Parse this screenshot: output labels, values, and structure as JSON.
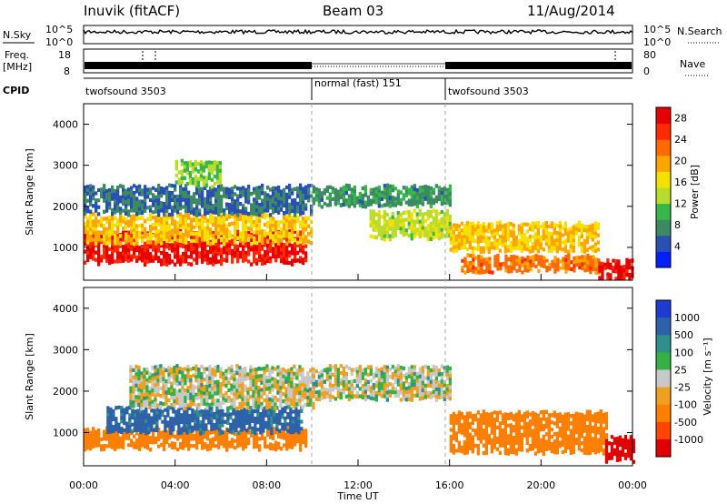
{
  "header": {
    "station": "Inuvik (fitACF)",
    "beam": "Beam 03",
    "date": "11/Aug/2014"
  },
  "nsky_panel": {
    "left_label": "N.Sky",
    "right_label": "N.Search",
    "ticks_left": [
      "10^5",
      "10^0"
    ],
    "ticks_right": [
      "10^5",
      "10^0"
    ]
  },
  "freq_panel": {
    "left_label_1": "Freq.",
    "left_label_2": "[MHz]",
    "right_label": "Nave",
    "ticks_left": [
      "18",
      "8"
    ],
    "ticks_right": [
      "80",
      "0"
    ]
  },
  "cpid": {
    "label": "CPID",
    "segments": [
      {
        "name": "twofsound 3503",
        "start_h": 0,
        "end_h": 10
      },
      {
        "name": "normal (fast) 151",
        "start_h": 10,
        "end_h": 16
      },
      {
        "name": "twofsound 3503",
        "start_h": 16,
        "end_h": 24
      }
    ]
  },
  "colors": {
    "power": [
      "#0020ff",
      "#2a4fb4",
      "#3c8a64",
      "#37b64a",
      "#b8dc2c",
      "#f5e000",
      "#ffa500",
      "#ff6a00",
      "#ff2a00",
      "#e60000"
    ],
    "velocity": [
      "#1b3bd1",
      "#2e62a8",
      "#2f8f8a",
      "#34b044",
      "#8fd43a",
      "#c8c8c8",
      "#f0a020",
      "#ff7f00",
      "#ff4500",
      "#e00000"
    ]
  },
  "chart_data": [
    {
      "type": "heatmap",
      "title": "Power",
      "ylabel": "Slant Range [km]",
      "xlabel": "Time UT",
      "x_ticks": [
        "00:00",
        "04:00",
        "08:00",
        "12:00",
        "16:00",
        "20:00",
        "00:00"
      ],
      "y_ticks": [
        "1000",
        "2000",
        "3000",
        "4000"
      ],
      "xlim_hours": [
        0,
        24
      ],
      "ylim": [
        200,
        4500
      ],
      "colorbar": {
        "label": "Power [dB]",
        "ticks": [
          "4",
          "8",
          "12",
          "16",
          "20",
          "24",
          "28"
        ],
        "range": [
          0,
          30
        ]
      },
      "regions": [
        {
          "t0": 0.0,
          "t1": 9.7,
          "r_min": 600,
          "r_max": 1400,
          "level": 27
        },
        {
          "t0": 0.0,
          "t1": 10.0,
          "r_min": 1100,
          "r_max": 1800,
          "level": 18
        },
        {
          "t0": 0.0,
          "t1": 10.0,
          "r_min": 1800,
          "r_max": 2500,
          "level": 6
        },
        {
          "t0": 4.0,
          "t1": 6.0,
          "r_min": 2500,
          "r_max": 3100,
          "level": 12
        },
        {
          "t0": 10.0,
          "t1": 16.0,
          "r_min": 2000,
          "r_max": 2500,
          "level": 8
        },
        {
          "t0": 12.5,
          "t1": 16.0,
          "r_min": 1200,
          "r_max": 1900,
          "level": 14
        },
        {
          "t0": 16.0,
          "t1": 22.5,
          "r_min": 900,
          "r_max": 1600,
          "level": 18
        },
        {
          "t0": 16.5,
          "t1": 22.5,
          "r_min": 400,
          "r_max": 800,
          "level": 22
        },
        {
          "t0": 22.5,
          "t1": 24.0,
          "r_min": 200,
          "r_max": 700,
          "level": 28
        }
      ]
    },
    {
      "type": "heatmap",
      "title": "Velocity",
      "ylabel": "Slant Range [km]",
      "xlabel": "Time UT",
      "x_ticks": [
        "00:00",
        "04:00",
        "08:00",
        "12:00",
        "16:00",
        "20:00",
        "00:00"
      ],
      "y_ticks": [
        "1000",
        "2000",
        "3000",
        "4000"
      ],
      "xlim_hours": [
        0,
        24
      ],
      "ylim": [
        200,
        4500
      ],
      "colorbar": {
        "label": "Velocity [m s⁻¹]",
        "ticks": [
          "1000",
          "500",
          "100",
          "25",
          "-25",
          "-100",
          "-500",
          "-1000"
        ],
        "range": [
          -1000,
          1000
        ]
      },
      "regions": [
        {
          "t0": 0.0,
          "t1": 9.7,
          "r_min": 600,
          "r_max": 1100,
          "level": -300
        },
        {
          "t0": 1.0,
          "t1": 9.5,
          "r_min": 1000,
          "r_max": 1600,
          "level": 150
        },
        {
          "t0": 2.0,
          "t1": 10.0,
          "r_min": 1600,
          "r_max": 2600,
          "level": 0
        },
        {
          "t0": 10.0,
          "t1": 16.0,
          "r_min": 1800,
          "r_max": 2600,
          "level": 0
        },
        {
          "t0": 16.0,
          "t1": 22.8,
          "r_min": 500,
          "r_max": 1500,
          "level": -400
        },
        {
          "t0": 22.8,
          "t1": 24.0,
          "r_min": 300,
          "r_max": 900,
          "level": -700
        }
      ]
    }
  ]
}
